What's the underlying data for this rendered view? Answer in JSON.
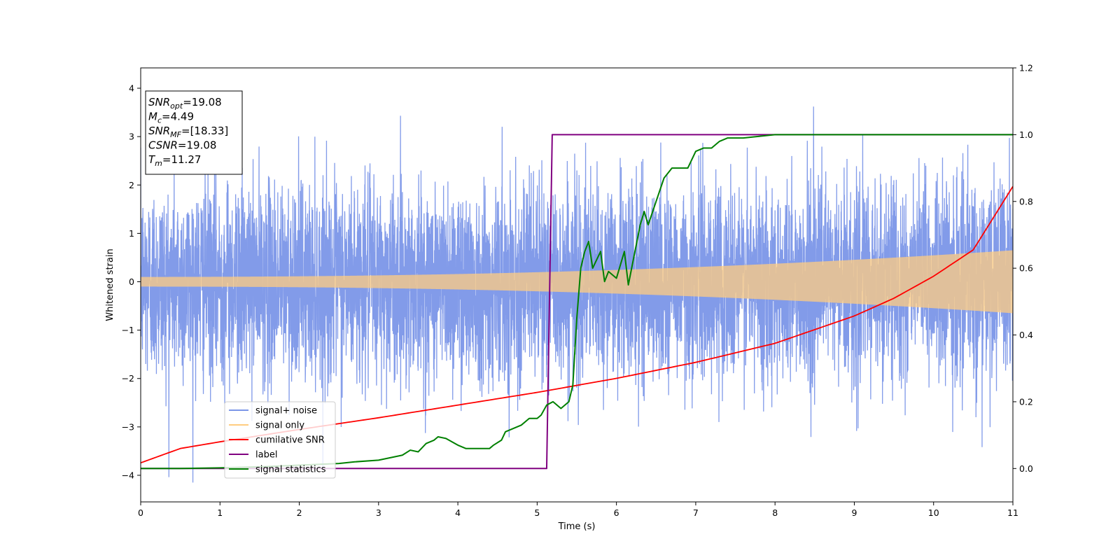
{
  "chart_data": {
    "type": "line",
    "xlabel": "Time (s)",
    "ylabel": "Whitened strain",
    "xlim": [
      0,
      11
    ],
    "ylim": [
      -4.55,
      4.42
    ],
    "y2lim": [
      -0.1,
      1.2
    ],
    "x_ticks": [
      0,
      1,
      2,
      3,
      4,
      5,
      6,
      7,
      8,
      9,
      10,
      11
    ],
    "y_ticks": [
      -4,
      -3,
      -2,
      -1,
      0,
      1,
      2,
      3,
      4
    ],
    "y2_ticks": [
      0.0,
      0.2,
      0.4,
      0.6,
      0.8,
      1.0,
      1.2
    ],
    "grid": false,
    "legend_position": "lower-left",
    "annotation": {
      "lines": [
        {
          "base": "SNR",
          "sub": "opt",
          "value": "=19.08"
        },
        {
          "base": "M",
          "sub": "c",
          "value": "=4.49"
        },
        {
          "base": "SNR",
          "sub": "MF",
          "value": "=[18.33]"
        },
        {
          "base": "CSNR",
          "sub": "",
          "value": "=19.08"
        },
        {
          "base": "T",
          "sub": "m",
          "value": "=11.27"
        }
      ]
    },
    "series": [
      {
        "name": "signal+ noise",
        "color": "#7b96e8",
        "axis": "left",
        "kind": "noise",
        "noise_sigma": 1.0,
        "approx_max": 4.02,
        "approx_min": -4.15
      },
      {
        "name": "signal only",
        "color": "#ffcc80",
        "axis": "left",
        "kind": "chirp",
        "amplitude_start": 0.1,
        "amplitude_end": 0.65
      },
      {
        "name": "cumilative SNR",
        "color": "#ff0000",
        "axis": "right",
        "x": [
          0,
          0.5,
          1,
          2,
          3,
          4,
          5,
          6,
          7,
          8,
          9,
          9.5,
          10,
          10.5,
          11
        ],
        "y": [
          0.017,
          0.06,
          0.08,
          0.117,
          0.152,
          0.19,
          0.228,
          0.27,
          0.318,
          0.375,
          0.457,
          0.51,
          0.576,
          0.655,
          0.845
        ]
      },
      {
        "name": "label",
        "color": "#800080",
        "axis": "right",
        "x": [
          0,
          5.12,
          5.19,
          11
        ],
        "y": [
          0,
          0,
          1,
          1
        ]
      },
      {
        "name": "signal statistics",
        "color": "#008000",
        "axis": "right",
        "x": [
          0,
          0.5,
          1,
          1.5,
          2,
          2.5,
          2.7,
          3,
          3.1,
          3.3,
          3.4,
          3.5,
          3.6,
          3.7,
          3.75,
          3.85,
          4,
          4.1,
          4.2,
          4.3,
          4.4,
          4.45,
          4.55,
          4.6,
          4.7,
          4.8,
          4.9,
          5,
          5.05,
          5.12,
          5.2,
          5.3,
          5.4,
          5.45,
          5.5,
          5.55,
          5.6,
          5.65,
          5.7,
          5.8,
          5.85,
          5.9,
          6,
          6.1,
          6.15,
          6.2,
          6.3,
          6.35,
          6.4,
          6.5,
          6.6,
          6.7,
          6.8,
          6.9,
          7,
          7.1,
          7.2,
          7.3,
          7.4,
          7.6,
          7.8,
          8,
          8.5,
          9,
          9.5,
          10,
          10.5,
          11
        ],
        "y": [
          0,
          0,
          0.002,
          0.005,
          0.01,
          0.015,
          0.02,
          0.025,
          0.03,
          0.04,
          0.055,
          0.05,
          0.075,
          0.085,
          0.095,
          0.09,
          0.07,
          0.06,
          0.06,
          0.06,
          0.06,
          0.07,
          0.085,
          0.11,
          0.12,
          0.13,
          0.15,
          0.15,
          0.16,
          0.19,
          0.2,
          0.18,
          0.2,
          0.25,
          0.45,
          0.6,
          0.65,
          0.68,
          0.6,
          0.65,
          0.56,
          0.59,
          0.57,
          0.65,
          0.55,
          0.61,
          0.73,
          0.77,
          0.73,
          0.8,
          0.87,
          0.9,
          0.9,
          0.9,
          0.95,
          0.96,
          0.96,
          0.98,
          0.99,
          0.99,
          0.995,
          1.0,
          1.0,
          1.0,
          1.0,
          1.0,
          1.0,
          1.0
        ]
      }
    ]
  }
}
